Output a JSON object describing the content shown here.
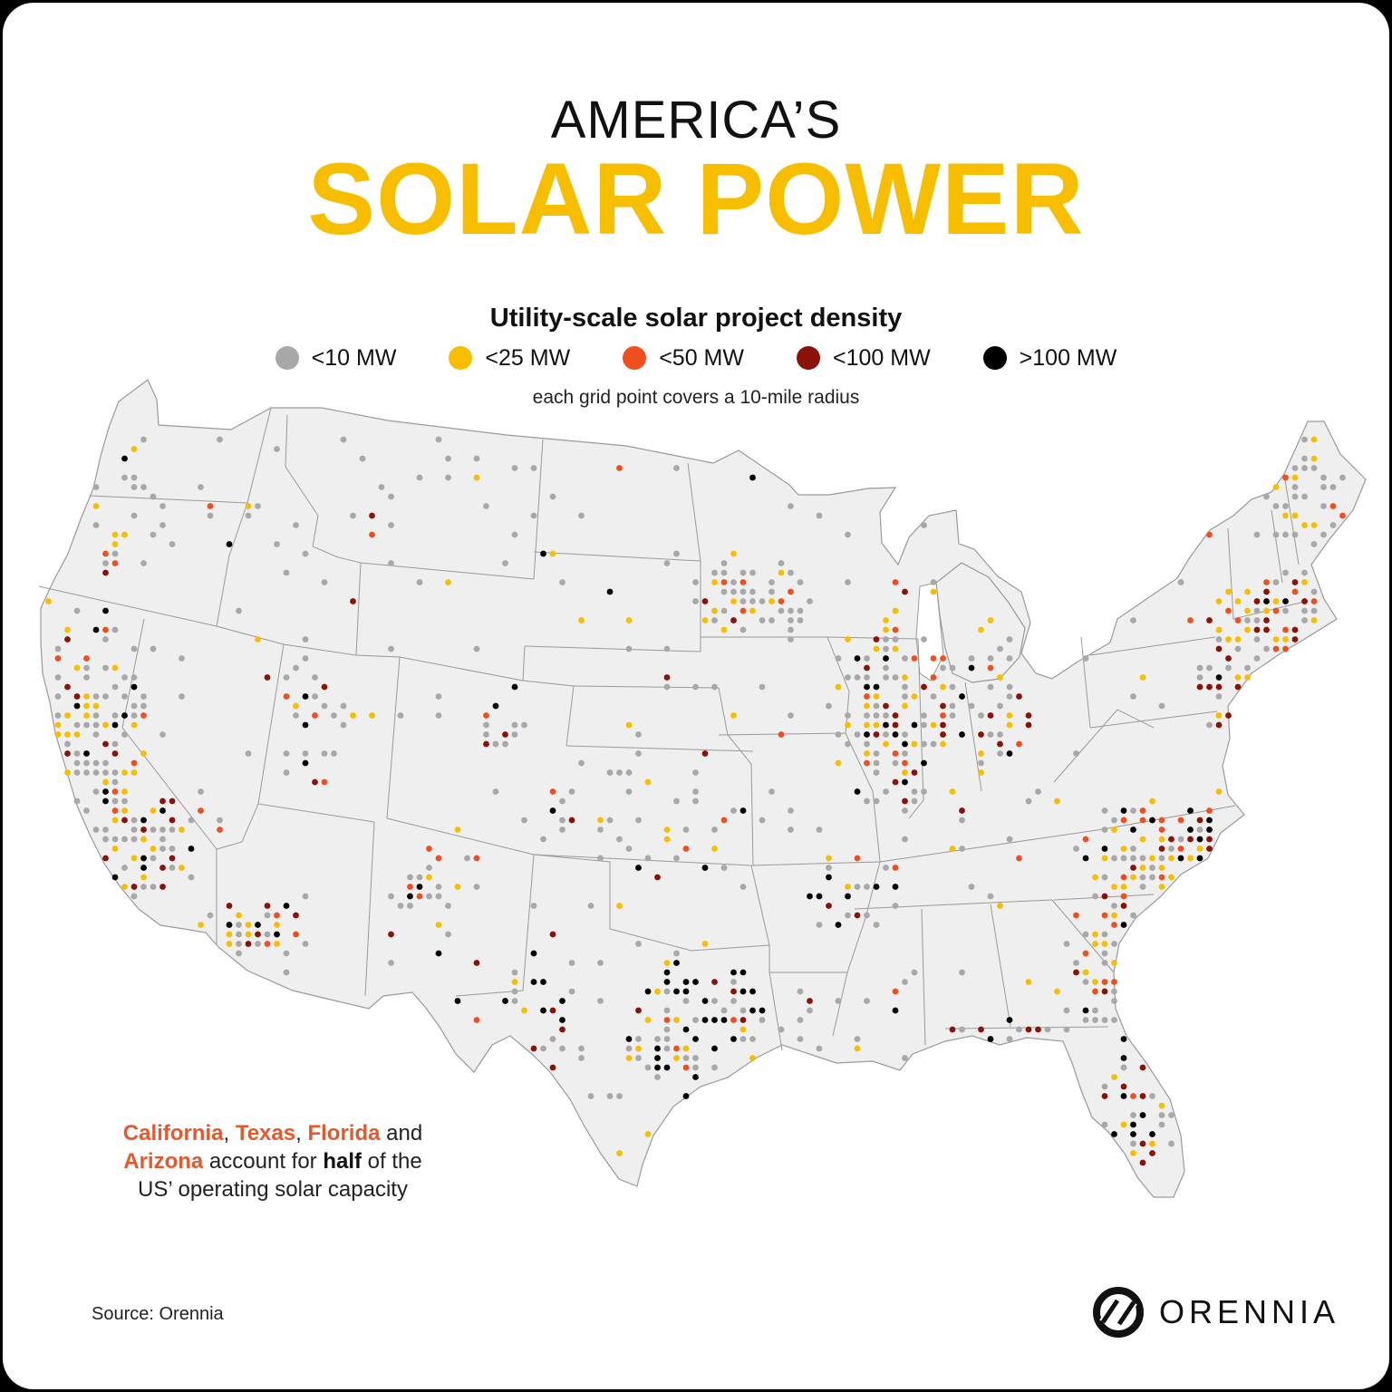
{
  "title": {
    "line1": "AMERICA’S",
    "line2": "SOLAR POWER"
  },
  "legend": {
    "title": "Utility-scale solar project density",
    "items": [
      {
        "label": "<10 MW",
        "color": "#A8A8A8"
      },
      {
        "label": "<25 MW",
        "color": "#F7BE00"
      },
      {
        "label": "<50 MW",
        "color": "#F04E1E"
      },
      {
        "label": "<100 MW",
        "color": "#8B1208"
      },
      {
        "label": ">100 MW",
        "color": "#000000"
      }
    ],
    "note": "each grid point covers a 10-mile radius"
  },
  "annotation": {
    "state1": "California",
    "sep1": ", ",
    "state2": "Texas",
    "sep2": ", ",
    "state3": "Florida",
    "and": " and",
    "state4": "Arizona",
    "mid": " account for ",
    "emph": "half",
    "tail": " of the",
    "line3": "US’ operating solar capacity"
  },
  "source": "Source: Orennia",
  "brand": {
    "name": "ORENNIA",
    "logo_icon": "orennia-logo-icon"
  },
  "map_colors": {
    "land": "#EFEFEF",
    "border": "#9A9A9A"
  }
}
